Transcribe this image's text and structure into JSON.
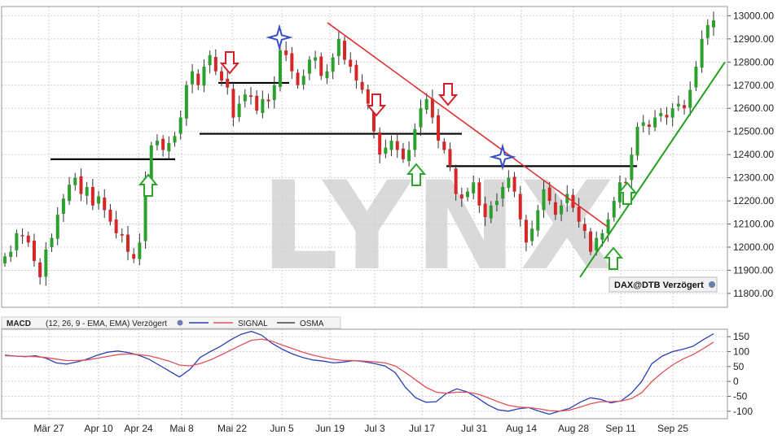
{
  "watermark": "LYNX",
  "badge": {
    "label": "DAX@DTB Verzögert"
  },
  "legend": {
    "indicator": "MACD",
    "params": "(12, 26, 9 - EMA, EMA) Verzögert",
    "signal_label": "SIGNAL",
    "osma_label": "OSMA"
  },
  "colors": {
    "up": "#2ca02c",
    "down": "#d62728",
    "trend_red": "#e03030",
    "trend_green": "#22a022",
    "support": "#000000",
    "macd_line": "#2b3fb5",
    "signal_line": "#e0505a",
    "arrow_red": "#d41f2a",
    "arrow_green": "#2aa52a",
    "star": "#3a4fc4",
    "grid": "#cfcfcf"
  },
  "chart_data": [
    {
      "type": "candlestick",
      "name": "DAX",
      "x_ticks": [
        "Mär 27",
        "Apr 10",
        "Apr 24",
        "Mai 8",
        "Mai 22",
        "Jun 5",
        "Jun 19",
        "Jul 3",
        "Jul 17",
        "Jul 31",
        "Aug 14",
        "Aug 28",
        "Sep 11",
        "Sep 25"
      ],
      "y_ticks": [
        11800,
        11900,
        12000,
        12100,
        12200,
        12300,
        12400,
        12500,
        12600,
        12700,
        12800,
        12900,
        13000
      ],
      "y_tick_labels": [
        "11800.00",
        "11900.00",
        "12000.00",
        "12100.00",
        "12200.00",
        "12300.00",
        "12400.00",
        "12500.00",
        "12600.00",
        "12700.00",
        "12800.00",
        "12900.00",
        "13000.00"
      ],
      "ylim": [
        11740,
        13040
      ],
      "close": [
        11960,
        11980,
        12060,
        12050,
        12020,
        11940,
        11870,
        11990,
        12040,
        12140,
        12210,
        12270,
        12300,
        12230,
        12260,
        12180,
        12220,
        12160,
        12110,
        12060,
        12050,
        11980,
        11950,
        12020,
        12300,
        12440,
        12460,
        12420,
        12450,
        12480,
        12560,
        12700,
        12760,
        12700,
        12780,
        12830,
        12760,
        12720,
        12690,
        12560,
        12620,
        12660,
        12650,
        12590,
        12640,
        12630,
        12700,
        12850,
        12830,
        12760,
        12700,
        12740,
        12810,
        12820,
        12740,
        12760,
        12820,
        12900,
        12810,
        12780,
        12720,
        12680,
        12620,
        12500,
        12400,
        12430,
        12460,
        12420,
        12380,
        12420,
        12510,
        12600,
        12640,
        12560,
        12460,
        12420,
        12350,
        12230,
        12210,
        12240,
        12280,
        12180,
        12130,
        12180,
        12200,
        12260,
        12300,
        12240,
        12120,
        12020,
        12080,
        12160,
        12250,
        12200,
        12140,
        12180,
        12230,
        12170,
        12110,
        12070,
        11980,
        12040,
        12060,
        12120,
        12200,
        12280,
        12280,
        12400,
        12520,
        12540,
        12520,
        12560,
        12580,
        12560,
        12600,
        12620,
        12600,
        12680,
        12780,
        12900,
        12960,
        12980
      ],
      "trendlines": [
        {
          "name": "downtrend",
          "x": [
            0,
            0
          ],
          "y": [
            0,
            0
          ]
        },
        {
          "name": "uptrend",
          "x": [
            0,
            0
          ],
          "y": [
            0,
            0
          ]
        }
      ],
      "horizontal_levels": [
        12380,
        12490,
        12710,
        12350
      ]
    },
    {
      "type": "line",
      "name": "MACD",
      "y_ticks": [
        -100,
        -50,
        0,
        50,
        100,
        150
      ],
      "y_tick_labels": [
        "-100",
        "-50",
        "0",
        "50",
        "100",
        "150"
      ],
      "ylim": [
        -125,
        175
      ],
      "series": [
        {
          "name": "MACD",
          "values": [
            88,
            85,
            83,
            86,
            78,
            62,
            58,
            65,
            75,
            88,
            98,
            102,
            97,
            88,
            75,
            55,
            35,
            15,
            40,
            80,
            100,
            118,
            140,
            158,
            168,
            155,
            128,
            108,
            92,
            80,
            72,
            68,
            62,
            65,
            70,
            66,
            60,
            52,
            30,
            -20,
            -55,
            -70,
            -68,
            -40,
            -25,
            -35,
            -55,
            -78,
            -95,
            -100,
            -92,
            -88,
            -100,
            -110,
            -100,
            -90,
            -70,
            -55,
            -60,
            -72,
            -65,
            -40,
            0,
            60,
            85,
            100,
            108,
            118,
            140,
            160
          ]
        },
        {
          "name": "SIGNAL",
          "values": [
            86,
            85,
            84,
            83,
            80,
            75,
            70,
            70,
            72,
            78,
            84,
            90,
            92,
            90,
            86,
            78,
            68,
            55,
            52,
            60,
            72,
            88,
            105,
            122,
            138,
            142,
            135,
            122,
            110,
            98,
            88,
            80,
            74,
            70,
            70,
            68,
            66,
            62,
            52,
            30,
            5,
            -20,
            -36,
            -40,
            -36,
            -36,
            -42,
            -54,
            -68,
            -80,
            -86,
            -88,
            -92,
            -98,
            -100,
            -96,
            -86,
            -75,
            -68,
            -68,
            -66,
            -58,
            -38,
            0,
            30,
            55,
            75,
            90,
            110,
            132
          ]
        }
      ]
    }
  ]
}
